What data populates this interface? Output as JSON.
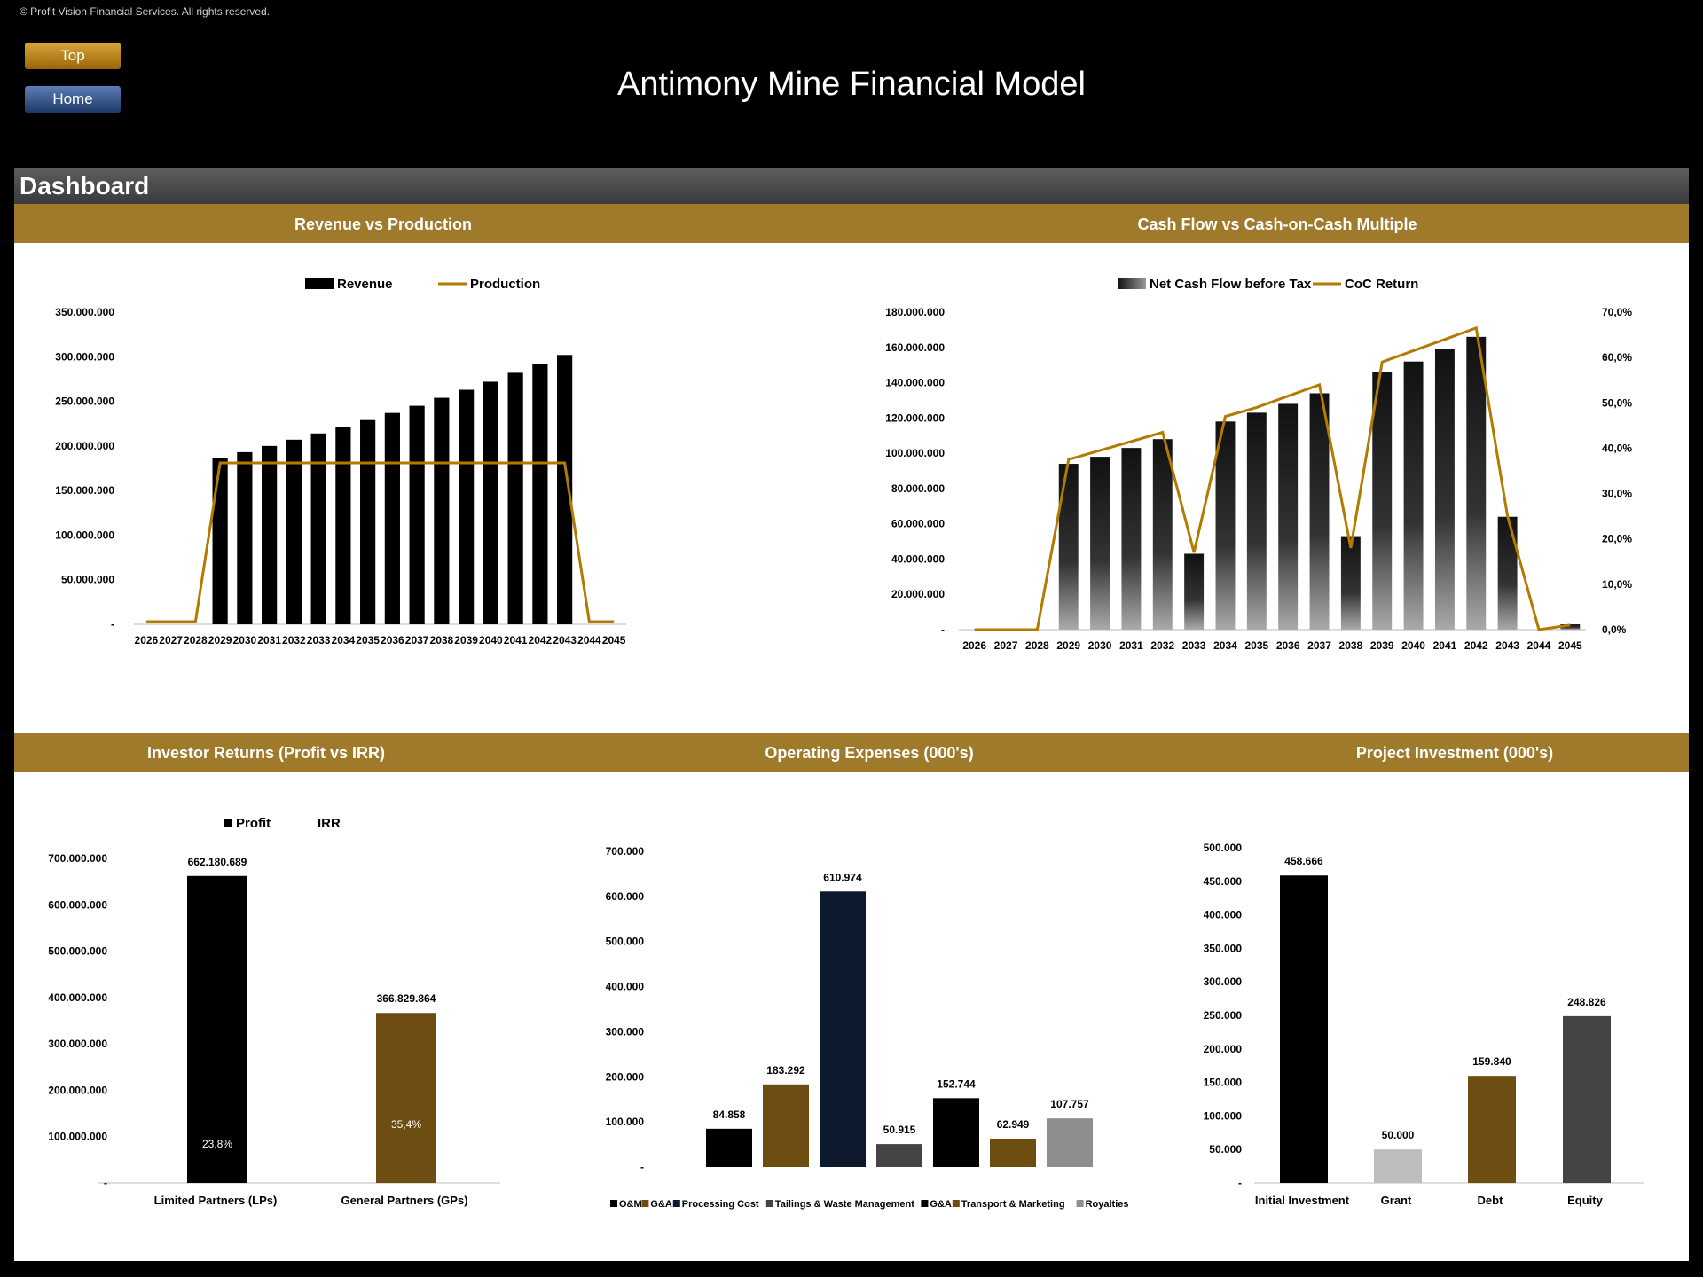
{
  "copyright": "© Profit Vision Financial Services. All rights reserved.",
  "nav": {
    "top_label": "Top",
    "home_label": "Home"
  },
  "title": "Antimony Mine Financial Model",
  "dashboard_label": "Dashboard",
  "sections": {
    "revenue": "Revenue vs Production",
    "cashflow": "Cash Flow vs Cash-on-Cash Multiple",
    "investor": "Investor Returns (Profit vs IRR)",
    "opex": "Operating Expenses (000's)",
    "investment": "Project Investment (000's)"
  },
  "colors": {
    "accent": "#a07a2b",
    "line": "#b37a00",
    "bar_dark": "#000000",
    "bar_navy": "#0d1a2e",
    "bar_brown": "#6e4d12",
    "bar_gray": "#444444",
    "bar_light": "#bdbdbd"
  },
  "chart_data": [
    {
      "id": "revenue",
      "type": "bar",
      "title": "Revenue vs Production",
      "categories": [
        "2026",
        "2027",
        "2028",
        "2029",
        "2030",
        "2031",
        "2032",
        "2033",
        "2034",
        "2035",
        "2036",
        "2037",
        "2038",
        "2039",
        "2040",
        "2041",
        "2042",
        "2043",
        "2044",
        "2045"
      ],
      "series": [
        {
          "name": "Revenue",
          "type": "bar",
          "values": [
            0,
            0,
            0,
            186000000,
            193000000,
            200000000,
            207000000,
            214000000,
            221000000,
            229000000,
            237000000,
            245000000,
            254000000,
            263000000,
            272000000,
            282000000,
            292000000,
            302000000,
            0,
            0
          ]
        },
        {
          "name": "Production",
          "type": "line",
          "values": [
            0,
            0,
            0,
            1,
            1,
            1,
            1,
            1,
            1,
            1,
            1,
            1,
            1,
            1,
            1,
            1,
            1,
            1,
            0,
            0
          ]
        }
      ],
      "y_ticks": [
        "-",
        "50.000.000",
        "100.000.000",
        "150.000.000",
        "200.000.000",
        "250.000.000",
        "300.000.000",
        "350.000.000"
      ],
      "ylim": [
        0,
        350000000
      ]
    },
    {
      "id": "cashflow",
      "type": "bar",
      "title": "Cash Flow vs Cash-on-Cash Multiple",
      "categories": [
        "2026",
        "2027",
        "2028",
        "2029",
        "2030",
        "2031",
        "2032",
        "2033",
        "2034",
        "2035",
        "2036",
        "2037",
        "2038",
        "2039",
        "2040",
        "2041",
        "2042",
        "2043",
        "2044",
        "2045"
      ],
      "series": [
        {
          "name": "Net Cash Flow before Tax",
          "type": "bar",
          "values": [
            0,
            0,
            0,
            94000000,
            98000000,
            103000000,
            108000000,
            43000000,
            118000000,
            123000000,
            128000000,
            134000000,
            53000000,
            146000000,
            152000000,
            159000000,
            166000000,
            64000000,
            0,
            3000000
          ]
        },
        {
          "name": "CoC Return",
          "type": "line",
          "axis": "right",
          "values": [
            0,
            0,
            0,
            37.5,
            39.5,
            41.5,
            43.5,
            17,
            47,
            49,
            51.5,
            54,
            18,
            59,
            61.5,
            64,
            66.5,
            25,
            0,
            1
          ]
        }
      ],
      "y_ticks": [
        "-",
        "20.000.000",
        "40.000.000",
        "60.000.000",
        "80.000.000",
        "100.000.000",
        "120.000.000",
        "140.000.000",
        "160.000.000",
        "180.000.000"
      ],
      "ylim": [
        0,
        180000000
      ],
      "y2_ticks": [
        "0,0%",
        "10,0%",
        "20,0%",
        "30,0%",
        "40,0%",
        "50,0%",
        "60,0%",
        "70,0%"
      ],
      "y2lim": [
        0,
        70
      ]
    },
    {
      "id": "investor",
      "type": "bar",
      "title": "Investor Returns (Profit vs IRR)",
      "legend": [
        "Profit",
        "IRR"
      ],
      "categories": [
        "Limited Partners (LPs)",
        "General Partners (GPs)"
      ],
      "values": [
        662180689,
        366829864
      ],
      "value_labels": [
        "662.180.689",
        "366.829.864"
      ],
      "irr_labels": [
        "23,8%",
        "35,4%"
      ],
      "y_ticks": [
        "-",
        "100.000.000",
        "200.000.000",
        "300.000.000",
        "400.000.000",
        "500.000.000",
        "600.000.000",
        "700.000.000"
      ],
      "ylim": [
        0,
        700000000
      ]
    },
    {
      "id": "opex",
      "type": "bar",
      "title": "Operating Expenses (000's)",
      "categories": [
        "O&M",
        "G&A",
        "Processing Cost",
        "Tailings & Waste Management",
        "G&A",
        "Transport & Marketing",
        "Royalties"
      ],
      "values": [
        84858,
        183292,
        610974,
        50915,
        152744,
        62949,
        107757
      ],
      "value_labels": [
        "84.858",
        "183.292",
        "610.974",
        "50.915",
        "152.744",
        "62.949",
        "107.757"
      ],
      "y_ticks": [
        "-",
        "100.000",
        "200.000",
        "300.000",
        "400.000",
        "500.000",
        "600.000",
        "700.000"
      ],
      "ylim": [
        0,
        700000
      ]
    },
    {
      "id": "investment",
      "type": "bar",
      "title": "Project Investment (000's)",
      "categories": [
        "Initial Investment",
        "Grant",
        "Debt",
        "Equity"
      ],
      "values": [
        458666,
        50000,
        159840,
        248826
      ],
      "value_labels": [
        "458.666",
        "50.000",
        "159.840",
        "248.826"
      ],
      "y_ticks": [
        "-",
        "50.000",
        "100.000",
        "150.000",
        "200.000",
        "250.000",
        "300.000",
        "350.000",
        "400.000",
        "450.000",
        "500.000"
      ],
      "ylim": [
        0,
        500000
      ]
    }
  ]
}
